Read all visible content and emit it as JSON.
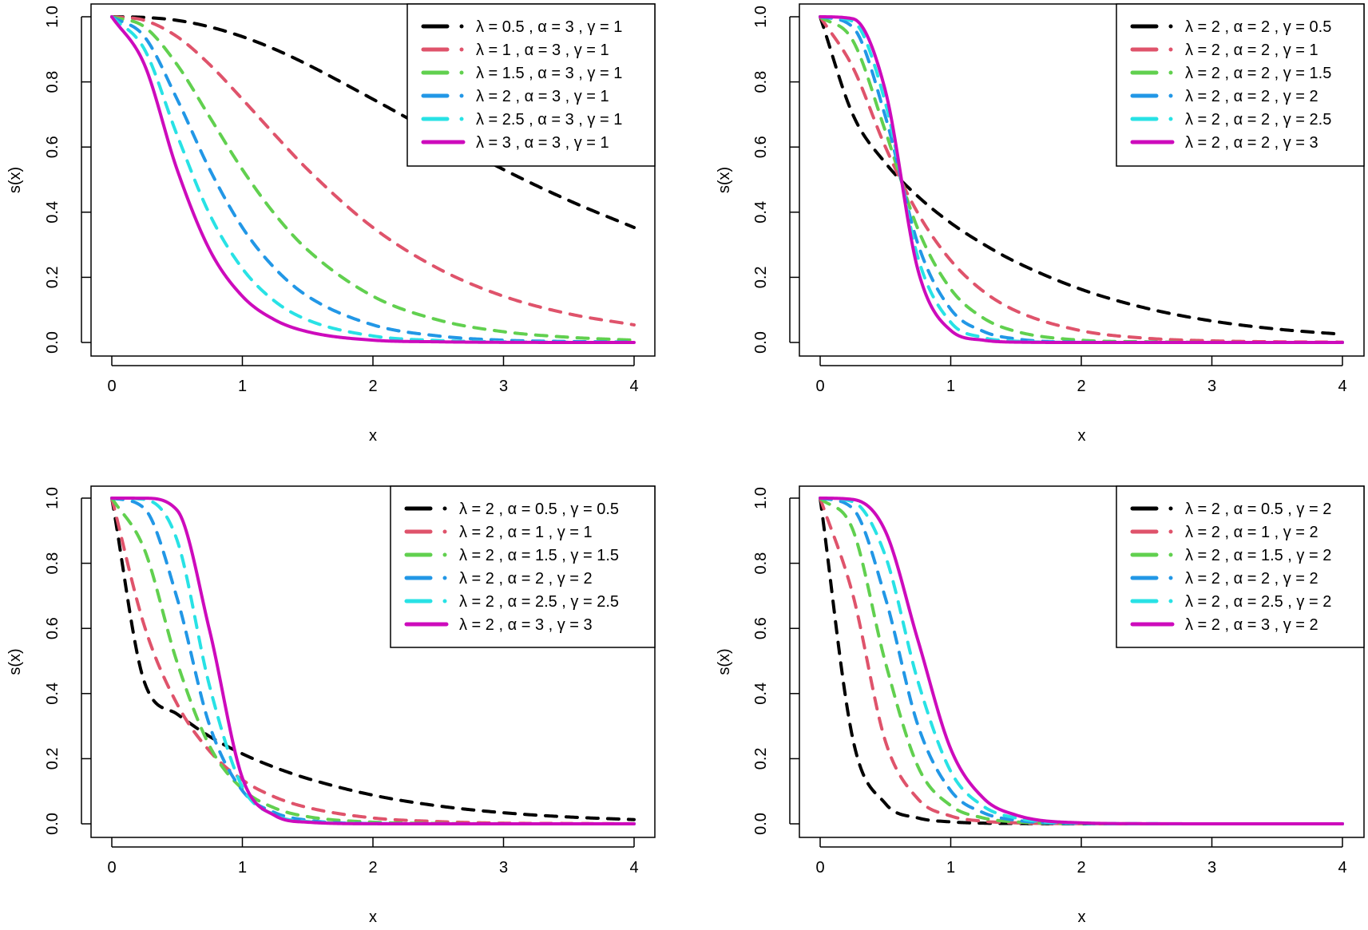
{
  "chart_data": [
    {
      "type": "line",
      "xlabel": "x",
      "ylabel": "s(x)",
      "xlim": [
        0,
        4
      ],
      "ylim": [
        0,
        1
      ],
      "xticks": [
        "0",
        "1",
        "2",
        "3",
        "4"
      ],
      "yticks": [
        "0.0",
        "0.2",
        "0.4",
        "0.6",
        "0.8",
        "1.0"
      ],
      "grid": false,
      "legend_position": "top-right",
      "x": [
        0,
        0.25,
        0.5,
        0.75,
        1,
        1.25,
        1.5,
        2,
        2.5,
        3,
        3.5,
        4
      ],
      "series": [
        {
          "name": "λ = 0.5 , α = 3 , γ = 1",
          "color": "#000000",
          "style": "dashed",
          "values": [
            1,
            0.998,
            0.989,
            0.969,
            0.939,
            0.9,
            0.853,
            0.747,
            0.637,
            0.531,
            0.436,
            0.353
          ]
        },
        {
          "name": "λ = 1 , α = 3 , γ = 1",
          "color": "#DF536B",
          "style": "dashed",
          "values": [
            1,
            0.989,
            0.939,
            0.853,
            0.747,
            0.637,
            0.531,
            0.353,
            0.227,
            0.142,
            0.088,
            0.054
          ]
        },
        {
          "name": "λ = 1.5 , α = 3 , γ = 1",
          "color": "#61D04F",
          "style": "dashed",
          "values": [
            1,
            0.969,
            0.853,
            0.692,
            0.531,
            0.393,
            0.284,
            0.142,
            0.069,
            0.033,
            0.016,
            0.007
          ]
        },
        {
          "name": "λ = 2 , α = 3 , γ = 1",
          "color": "#2297E6",
          "style": "dashed",
          "values": [
            1,
            0.939,
            0.747,
            0.531,
            0.353,
            0.227,
            0.142,
            0.054,
            0.02,
            0.007,
            0.003,
            0.001
          ]
        },
        {
          "name": "λ = 2.5 , α = 3 , γ = 1",
          "color": "#28E2E5",
          "style": "dashed",
          "values": [
            1,
            0.9,
            0.637,
            0.393,
            0.227,
            0.126,
            0.069,
            0.02,
            0.006,
            0.002,
            0.0005,
            0.0001
          ]
        },
        {
          "name": "λ = 3 , α = 3 , γ = 1",
          "color": "#CD0BBC",
          "style": "solid",
          "values": [
            1,
            0.853,
            0.531,
            0.284,
            0.142,
            0.069,
            0.033,
            0.007,
            0.002,
            0.0004,
            0.0001,
            0
          ]
        }
      ]
    },
    {
      "type": "line",
      "xlabel": "x",
      "ylabel": "s(x)",
      "xlim": [
        0,
        4
      ],
      "ylim": [
        0,
        1
      ],
      "xticks": [
        "0",
        "1",
        "2",
        "3",
        "4"
      ],
      "yticks": [
        "0.0",
        "0.2",
        "0.4",
        "0.6",
        "0.8",
        "1.0"
      ],
      "grid": false,
      "legend_position": "top-right",
      "x": [
        0,
        0.25,
        0.5,
        0.75,
        1,
        1.25,
        1.5,
        2,
        2.5,
        3,
        3.5,
        4
      ],
      "series": [
        {
          "name": "λ = 2 , α = 2 , γ = 0.5",
          "color": "#000000",
          "style": "dashed",
          "values": [
            1,
            0.7,
            0.551,
            0.448,
            0.367,
            0.302,
            0.247,
            0.163,
            0.105,
            0.066,
            0.041,
            0.025
          ]
        },
        {
          "name": "λ = 2 , α = 2 , γ = 1",
          "color": "#DF536B",
          "style": "dashed",
          "values": [
            1,
            0.845,
            0.6,
            0.396,
            0.252,
            0.157,
            0.097,
            0.036,
            0.013,
            0.005,
            0.002,
            0.001
          ]
        },
        {
          "name": "λ = 2 , α = 2 , γ = 1.5",
          "color": "#61D04F",
          "style": "dashed",
          "values": [
            1,
            0.927,
            0.648,
            0.347,
            0.164,
            0.075,
            0.034,
            0.007,
            0.002,
            0.0004,
            0.0001,
            0
          ]
        },
        {
          "name": "λ = 2 , α = 2 , γ = 2",
          "color": "#2297E6",
          "style": "dashed",
          "values": [
            1,
            0.968,
            0.693,
            0.301,
            0.102,
            0.034,
            0.011,
            0.001,
            0.0002,
            0,
            0,
            0
          ]
        },
        {
          "name": "λ = 2 , α = 2 , γ = 2.5",
          "color": "#28E2E5",
          "style": "dashed",
          "values": [
            1,
            0.986,
            0.735,
            0.259,
            0.062,
            0.015,
            0.004,
            0.0003,
            0,
            0,
            0,
            0
          ]
        },
        {
          "name": "λ = 2 , α = 2 , γ = 3",
          "color": "#CD0BBC",
          "style": "solid",
          "values": [
            1,
            0.994,
            0.772,
            0.221,
            0.037,
            0.007,
            0.001,
            0,
            0,
            0,
            0,
            0
          ]
        }
      ]
    },
    {
      "type": "line",
      "xlabel": "x",
      "ylabel": "s(x)",
      "xlim": [
        0,
        4
      ],
      "ylim": [
        0,
        1
      ],
      "xticks": [
        "0",
        "1",
        "2",
        "3",
        "4"
      ],
      "yticks": [
        "0.0",
        "0.2",
        "0.4",
        "0.6",
        "0.8",
        "1.0"
      ],
      "grid": false,
      "legend_position": "top-right",
      "x": [
        0,
        0.25,
        0.5,
        0.75,
        1,
        1.25,
        1.5,
        2,
        2.5,
        3,
        3.5,
        4
      ],
      "series": [
        {
          "name": "λ = 2 , α = 0.5 , γ = 0.5",
          "color": "#000000",
          "style": "dashed",
          "values": [
            1,
            0.435,
            0.337,
            0.268,
            0.215,
            0.173,
            0.139,
            0.088,
            0.055,
            0.034,
            0.021,
            0.013
          ]
        },
        {
          "name": "λ = 2 , α = 1 , γ = 1",
          "color": "#DF536B",
          "style": "dashed",
          "values": [
            1,
            0.607,
            0.368,
            0.223,
            0.135,
            0.082,
            0.05,
            0.018,
            0.007,
            0.002,
            0.001,
            0.0003
          ]
        },
        {
          "name": "λ = 2 , α = 1.5 , γ = 1.5",
          "color": "#61D04F",
          "style": "dashed",
          "values": [
            1,
            0.842,
            0.496,
            0.238,
            0.107,
            0.048,
            0.022,
            0.005,
            0.001,
            0.0002,
            0,
            0
          ]
        },
        {
          "name": "λ = 2 , α = 2 , γ = 2",
          "color": "#2297E6",
          "style": "dashed",
          "values": [
            1,
            0.968,
            0.693,
            0.301,
            0.102,
            0.034,
            0.011,
            0.001,
            0.0002,
            0,
            0,
            0
          ]
        },
        {
          "name": "λ = 2 , α = 2.5 , γ = 2.5",
          "color": "#28E2E5",
          "style": "dashed",
          "values": [
            1,
            0.996,
            0.871,
            0.421,
            0.113,
            0.027,
            0.007,
            0.0005,
            0,
            0,
            0,
            0
          ]
        },
        {
          "name": "λ = 2 , α = 3 , γ = 3",
          "color": "#CD0BBC",
          "style": "solid",
          "values": [
            1,
            0.9997,
            0.963,
            0.592,
            0.141,
            0.025,
            0.005,
            0.0002,
            0,
            0,
            0,
            0
          ]
        }
      ]
    },
    {
      "type": "line",
      "xlabel": "x",
      "ylabel": "s(x)",
      "xlim": [
        0,
        4
      ],
      "ylim": [
        0,
        1
      ],
      "xticks": [
        "0",
        "1",
        "2",
        "3",
        "4"
      ],
      "yticks": [
        "0.0",
        "0.2",
        "0.4",
        "0.6",
        "0.8",
        "1.0"
      ],
      "grid": false,
      "legend_position": "top-right",
      "x": [
        0,
        0.25,
        0.5,
        0.75,
        1,
        1.25,
        1.5,
        2,
        2.5,
        3,
        3.5,
        4
      ],
      "series": [
        {
          "name": "λ = 2 , α = 0.5 , γ = 2",
          "color": "#000000",
          "style": "dashed",
          "values": [
            1,
            0.261,
            0.062,
            0.018,
            0.006,
            0.002,
            0.001,
            0.0001,
            0,
            0,
            0,
            0
          ]
        },
        {
          "name": "λ = 2 , α = 1 , γ = 2",
          "color": "#DF536B",
          "style": "dashed",
          "values": [
            1,
            0.704,
            0.253,
            0.076,
            0.024,
            0.008,
            0.003,
            0.0004,
            0,
            0,
            0,
            0
          ]
        },
        {
          "name": "λ = 2 , α = 1.5 , γ = 2",
          "color": "#61D04F",
          "style": "dashed",
          "values": [
            1,
            0.903,
            0.495,
            0.175,
            0.056,
            0.018,
            0.006,
            0.001,
            0.0001,
            0,
            0,
            0
          ]
        },
        {
          "name": "λ = 2 , α = 2 , γ = 2",
          "color": "#2297E6",
          "style": "dashed",
          "values": [
            1,
            0.968,
            0.693,
            0.301,
            0.102,
            0.034,
            0.011,
            0.001,
            0.0002,
            0,
            0,
            0
          ]
        },
        {
          "name": "λ = 2 , α = 2.5 , γ = 2",
          "color": "#28E2E5",
          "style": "dashed",
          "values": [
            1,
            0.989,
            0.822,
            0.436,
            0.161,
            0.054,
            0.018,
            0.002,
            0.0003,
            0,
            0,
            0
          ]
        },
        {
          "name": "λ = 2 , α = 3 , γ = 2",
          "color": "#CD0BBC",
          "style": "solid",
          "values": [
            1,
            0.996,
            0.898,
            0.562,
            0.23,
            0.079,
            0.027,
            0.003,
            0.0004,
            0.0001,
            0,
            0
          ]
        }
      ]
    }
  ]
}
